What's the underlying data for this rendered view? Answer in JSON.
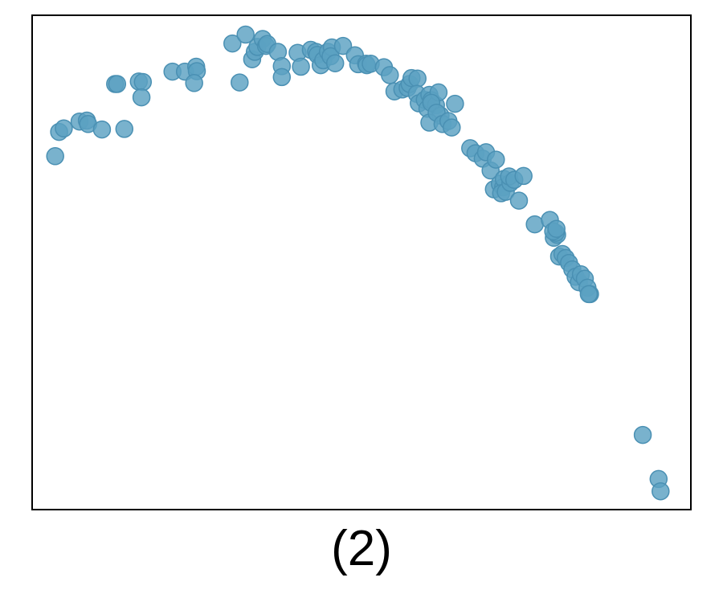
{
  "caption": "(2)",
  "colors": {
    "point_fill": "#5ba1c2",
    "point_stroke": "#4a90b3",
    "frame": "#000000",
    "background": "#ffffff"
  },
  "chart_data": {
    "type": "scatter",
    "title": "",
    "xlabel": "",
    "ylabel": "",
    "axes_ticks": "none",
    "grid": false,
    "legend": "none",
    "xlim": [
      0,
      100
    ],
    "ylim": [
      0,
      100
    ],
    "series": [
      {
        "points": [
          [
            3.5,
            71.5
          ],
          [
            4.1,
            76.4
          ],
          [
            4.8,
            77.1
          ],
          [
            7.2,
            78.5
          ],
          [
            8.3,
            78.7
          ],
          [
            8.5,
            78.0
          ],
          [
            10.6,
            76.9
          ],
          [
            14.0,
            77.0
          ],
          [
            12.6,
            86.1
          ],
          [
            12.9,
            86.1
          ],
          [
            16.2,
            86.6
          ],
          [
            16.8,
            86.5
          ],
          [
            16.6,
            83.4
          ],
          [
            21.3,
            88.6
          ],
          [
            23.2,
            88.6
          ],
          [
            24.9,
            89.6
          ],
          [
            25.0,
            88.7
          ],
          [
            24.6,
            86.3
          ],
          [
            30.4,
            94.3
          ],
          [
            31.5,
            86.4
          ],
          [
            32.4,
            96.1
          ],
          [
            33.4,
            91.1
          ],
          [
            33.8,
            92.6
          ],
          [
            34.2,
            93.6
          ],
          [
            35.0,
            95.2
          ],
          [
            35.5,
            93.8
          ],
          [
            35.7,
            94.2
          ],
          [
            37.3,
            92.6
          ],
          [
            37.9,
            89.7
          ],
          [
            37.9,
            87.5
          ],
          [
            40.3,
            92.4
          ],
          [
            40.8,
            89.6
          ],
          [
            42.3,
            93.0
          ],
          [
            43.1,
            92.6
          ],
          [
            43.3,
            92.0
          ],
          [
            43.8,
            89.9
          ],
          [
            44.2,
            90.9
          ],
          [
            44.9,
            92.6
          ],
          [
            45.5,
            93.5
          ],
          [
            45.3,
            91.7
          ],
          [
            46.0,
            90.3
          ],
          [
            47.2,
            93.8
          ],
          [
            49.0,
            91.9
          ],
          [
            49.5,
            90.1
          ],
          [
            50.7,
            90.2
          ],
          [
            50.8,
            89.9
          ],
          [
            51.4,
            90.2
          ],
          [
            53.4,
            89.5
          ],
          [
            54.3,
            87.9
          ],
          [
            55.0,
            84.6
          ],
          [
            56.2,
            85.0
          ],
          [
            57.0,
            85.3
          ],
          [
            57.3,
            86.1
          ],
          [
            57.6,
            87.3
          ],
          [
            58.5,
            87.2
          ],
          [
            58.4,
            84.1
          ],
          [
            58.7,
            82.2
          ],
          [
            59.6,
            82.9
          ],
          [
            60.0,
            81.1
          ],
          [
            60.3,
            83.9
          ],
          [
            60.6,
            82.8
          ],
          [
            61.3,
            81.8
          ],
          [
            61.7,
            84.4
          ],
          [
            60.6,
            82.3
          ],
          [
            62.0,
            79.7
          ],
          [
            60.3,
            78.3
          ],
          [
            61.4,
            80.3
          ],
          [
            62.3,
            78.0
          ],
          [
            63.2,
            78.6
          ],
          [
            63.7,
            77.3
          ],
          [
            64.2,
            82.1
          ],
          [
            66.5,
            73.1
          ],
          [
            67.3,
            72.1
          ],
          [
            68.4,
            71.0
          ],
          [
            68.9,
            72.3
          ],
          [
            69.6,
            68.6
          ],
          [
            70.4,
            70.8
          ],
          [
            70.1,
            64.8
          ],
          [
            71.0,
            65.9
          ],
          [
            71.5,
            65.2
          ],
          [
            71.6,
            66.9
          ],
          [
            71.2,
            64.0
          ],
          [
            71.9,
            64.3
          ],
          [
            72.6,
            66.1
          ],
          [
            72.4,
            67.4
          ],
          [
            73.2,
            66.7
          ],
          [
            74.6,
            67.5
          ],
          [
            73.9,
            62.5
          ],
          [
            76.3,
            57.7
          ],
          [
            78.6,
            58.6
          ],
          [
            79.2,
            55.0
          ],
          [
            79.7,
            55.6
          ],
          [
            79.5,
            56.0
          ],
          [
            79.1,
            56.3
          ],
          [
            79.6,
            56.8
          ],
          [
            80.0,
            51.2
          ],
          [
            80.5,
            51.7
          ],
          [
            81.0,
            50.9
          ],
          [
            81.5,
            49.9
          ],
          [
            82.0,
            48.6
          ],
          [
            82.5,
            47.1
          ],
          [
            83.0,
            46.0
          ],
          [
            83.3,
            47.6
          ],
          [
            83.9,
            46.7
          ],
          [
            84.3,
            44.9
          ],
          [
            84.7,
            43.6
          ],
          [
            84.5,
            43.6
          ],
          [
            92.7,
            15.1
          ],
          [
            95.1,
            6.2
          ],
          [
            95.4,
            3.7
          ]
        ]
      }
    ]
  }
}
